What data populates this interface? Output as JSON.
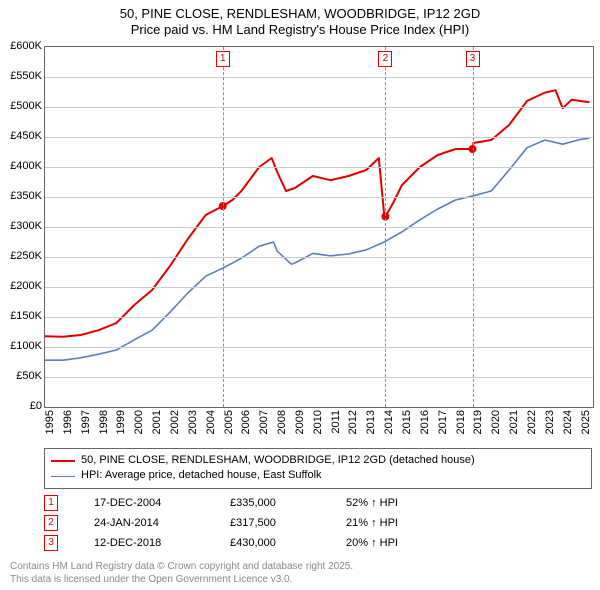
{
  "title_line1": "50, PINE CLOSE, RENDLESHAM, WOODBRIDGE, IP12 2GD",
  "title_line2": "Price paid vs. HM Land Registry's House Price Index (HPI)",
  "chart": {
    "type": "line",
    "background_color": "#ffffff",
    "border_color": "#666666",
    "grid_color": "#cccccc",
    "xlim": [
      1995,
      2025.7
    ],
    "ylim": [
      0,
      600000
    ],
    "ytick_step": 50000,
    "ytick_labels": [
      "£0",
      "£50K",
      "£100K",
      "£150K",
      "£200K",
      "£250K",
      "£300K",
      "£350K",
      "£400K",
      "£450K",
      "£500K",
      "£550K",
      "£600K"
    ],
    "xtick_years": [
      1995,
      1996,
      1997,
      1998,
      1999,
      2000,
      2001,
      2002,
      2003,
      2004,
      2005,
      2006,
      2007,
      2008,
      2009,
      2010,
      2011,
      2012,
      2013,
      2014,
      2015,
      2016,
      2017,
      2018,
      2019,
      2020,
      2021,
      2022,
      2023,
      2024,
      2025
    ],
    "label_fontsize": 11,
    "vlines": [
      {
        "year": 2004.96,
        "label": "1",
        "color": "#e46a6a"
      },
      {
        "year": 2014.07,
        "label": "2",
        "color": "#e46a6a"
      },
      {
        "year": 2018.95,
        "label": "3",
        "color": "#e46a6a"
      }
    ],
    "series": [
      {
        "name": "price_paid",
        "color": "#e00000",
        "width": 2,
        "points": [
          [
            1995,
            118000
          ],
          [
            1996,
            117000
          ],
          [
            1997,
            120000
          ],
          [
            1998,
            128000
          ],
          [
            1999,
            140000
          ],
          [
            2000,
            170000
          ],
          [
            2001,
            195000
          ],
          [
            2002,
            235000
          ],
          [
            2003,
            280000
          ],
          [
            2004,
            320000
          ],
          [
            2004.96,
            335000
          ],
          [
            2005.5,
            345000
          ],
          [
            2006,
            360000
          ],
          [
            2007,
            400000
          ],
          [
            2007.7,
            415000
          ],
          [
            2008,
            392000
          ],
          [
            2008.5,
            360000
          ],
          [
            2009,
            365000
          ],
          [
            2010,
            385000
          ],
          [
            2011,
            378000
          ],
          [
            2012,
            385000
          ],
          [
            2013,
            395000
          ],
          [
            2013.7,
            415000
          ],
          [
            2014.0,
            320000
          ],
          [
            2014.07,
            317500
          ],
          [
            2014.5,
            340000
          ],
          [
            2015,
            370000
          ],
          [
            2016,
            400000
          ],
          [
            2017,
            420000
          ],
          [
            2018,
            430000
          ],
          [
            2018.95,
            430000
          ],
          [
            2019,
            440000
          ],
          [
            2020,
            445000
          ],
          [
            2021,
            470000
          ],
          [
            2022,
            510000
          ],
          [
            2023,
            524000
          ],
          [
            2023.6,
            528000
          ],
          [
            2024,
            498000
          ],
          [
            2024.5,
            512000
          ],
          [
            2025,
            510000
          ],
          [
            2025.5,
            508000
          ]
        ],
        "markers": [
          {
            "x": 2004.96,
            "y": 335000
          },
          {
            "x": 2014.07,
            "y": 317500
          },
          {
            "x": 2018.95,
            "y": 430000
          }
        ]
      },
      {
        "name": "hpi",
        "color": "#5b7fb8",
        "width": 1.6,
        "points": [
          [
            1995,
            78000
          ],
          [
            1996,
            78000
          ],
          [
            1997,
            82000
          ],
          [
            1998,
            88000
          ],
          [
            1999,
            95000
          ],
          [
            2000,
            112000
          ],
          [
            2001,
            128000
          ],
          [
            2002,
            158000
          ],
          [
            2003,
            190000
          ],
          [
            2004,
            218000
          ],
          [
            2005,
            232000
          ],
          [
            2006,
            248000
          ],
          [
            2007,
            268000
          ],
          [
            2007.8,
            275000
          ],
          [
            2008,
            260000
          ],
          [
            2008.8,
            238000
          ],
          [
            2009,
            240000
          ],
          [
            2010,
            256000
          ],
          [
            2011,
            252000
          ],
          [
            2012,
            255000
          ],
          [
            2013,
            262000
          ],
          [
            2014,
            275000
          ],
          [
            2015,
            292000
          ],
          [
            2016,
            312000
          ],
          [
            2017,
            330000
          ],
          [
            2018,
            345000
          ],
          [
            2019,
            352000
          ],
          [
            2020,
            360000
          ],
          [
            2021,
            395000
          ],
          [
            2022,
            432000
          ],
          [
            2023,
            445000
          ],
          [
            2024,
            438000
          ],
          [
            2025,
            446000
          ],
          [
            2025.5,
            448000
          ]
        ]
      }
    ]
  },
  "legend": {
    "items": [
      {
        "color": "#e00000",
        "width": 2,
        "label": "50, PINE CLOSE, RENDLESHAM, WOODBRIDGE, IP12 2GD (detached house)"
      },
      {
        "color": "#5b7fb8",
        "width": 1.6,
        "label": "HPI: Average price, detached house, East Suffolk"
      }
    ]
  },
  "events": [
    {
      "n": "1",
      "date": "17-DEC-2004",
      "price": "£335,000",
      "pct": "52% ↑ HPI"
    },
    {
      "n": "2",
      "date": "24-JAN-2014",
      "price": "£317,500",
      "pct": "21% ↑ HPI"
    },
    {
      "n": "3",
      "date": "12-DEC-2018",
      "price": "£430,000",
      "pct": "20% ↑ HPI"
    }
  ],
  "footnote_line1": "Contains HM Land Registry data © Crown copyright and database right 2025.",
  "footnote_line2": "This data is licensed under the Open Government Licence v3.0."
}
